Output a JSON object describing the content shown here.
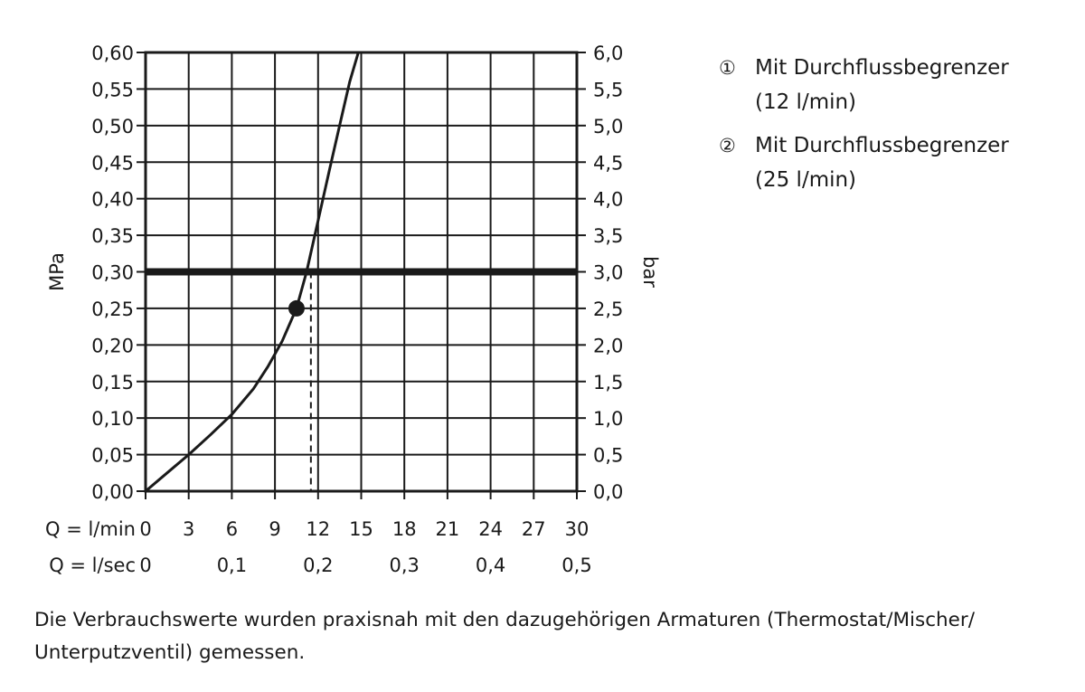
{
  "chart_data": {
    "type": "line",
    "x_label_min": "Q = l/min",
    "x_label_sec": "Q = l/sec",
    "x_ticks_min": [
      "0",
      "3",
      "6",
      "9",
      "12",
      "15",
      "18",
      "21",
      "24",
      "27",
      "30"
    ],
    "x_ticks_sec": [
      "0",
      "0,1",
      "0,2",
      "0,3",
      "0,4",
      "0,5"
    ],
    "x_ticks_sec_values": [
      0,
      6,
      12,
      18,
      24,
      30
    ],
    "xlim": [
      0,
      30
    ],
    "ylabel_left": "MPa",
    "ylabel_right": "bar",
    "y_ticks_left": [
      "0,00",
      "0,05",
      "0,10",
      "0,15",
      "0,20",
      "0,25",
      "0,30",
      "0,35",
      "0,40",
      "0,45",
      "0,50",
      "0,55",
      "0,60"
    ],
    "y_ticks_right": [
      "0,0",
      "0,5",
      "1,0",
      "1,5",
      "2,0",
      "2,5",
      "3,0",
      "3,5",
      "4,0",
      "4,5",
      "5,0",
      "5,5",
      "6,0"
    ],
    "ylim": [
      0,
      0.6
    ],
    "grid": true,
    "series": [
      {
        "x": [
          0,
          1.5,
          3,
          4.5,
          6,
          7.5,
          8.5,
          9.5,
          10.5,
          11.2,
          12,
          12.8,
          13.5,
          14.2,
          14.8
        ],
        "y": [
          0,
          0.025,
          0.05,
          0.077,
          0.105,
          0.14,
          0.17,
          0.205,
          0.25,
          0.3,
          0.37,
          0.44,
          0.5,
          0.56,
          0.6
        ]
      }
    ],
    "reference_line_y": 0.3,
    "marker": {
      "x": 10.5,
      "y": 0.25
    },
    "dashed_line_x": 11.5,
    "colors": {
      "line": "#1a1a1a",
      "grid": "#1a1a1a"
    }
  },
  "legend": [
    {
      "num": "①",
      "text_1": "Mit Durchflussbegrenzer",
      "text_2": "(12 l/min)"
    },
    {
      "num": "②",
      "text_1": "Mit Durchflussbegrenzer",
      "text_2": "(25 l/min)"
    }
  ],
  "footnote": "Die Verbrauchswerte wurden praxisnah mit den dazugehörigen Armaturen (Thermostat/Mischer/ Unterputzventil) gemessen."
}
